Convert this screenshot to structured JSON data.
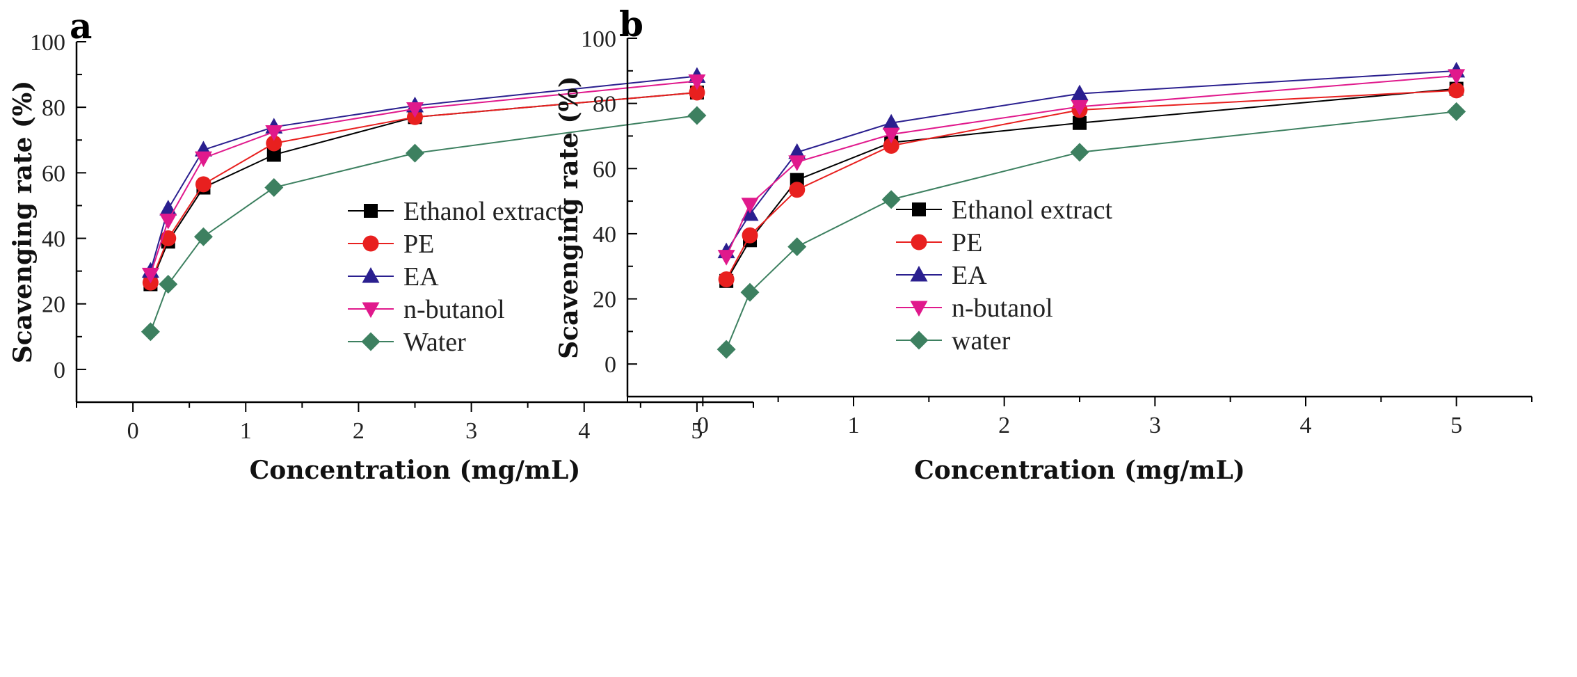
{
  "chart_data": [
    {
      "type": "line",
      "panel_label": "a",
      "xlabel": "Concentration (mg/mL)",
      "ylabel": "Scavenging rate (%)",
      "xlim": [
        -0.5,
        5.5
      ],
      "ylim": [
        -10,
        100
      ],
      "xticks": [
        0,
        1,
        2,
        3,
        4,
        5
      ],
      "yticks": [
        0,
        20,
        40,
        60,
        80,
        100
      ],
      "grid": false,
      "legend_position": "right",
      "series": [
        {
          "name": "Ethanol extract",
          "color": "#000000",
          "marker": "square",
          "x": [
            0.156,
            0.3125,
            0.625,
            1.25,
            2.5,
            5
          ],
          "y": [
            26.0,
            39.0,
            55.5,
            65.5,
            77.0,
            84.5
          ]
        },
        {
          "name": "PE",
          "color": "#e8201f",
          "marker": "circle",
          "x": [
            0.156,
            0.3125,
            0.625,
            1.25,
            2.5,
            5
          ],
          "y": [
            26.5,
            40.0,
            56.5,
            69.0,
            77.0,
            84.5
          ]
        },
        {
          "name": "EA",
          "color": "#2a1f8f",
          "marker": "triangle-up",
          "x": [
            0.156,
            0.3125,
            0.625,
            1.25,
            2.5,
            5
          ],
          "y": [
            30.0,
            49.0,
            67.0,
            74.0,
            80.5,
            89.5
          ]
        },
        {
          "name": "n-butanol",
          "color": "#e0198c",
          "marker": "triangle-down",
          "x": [
            0.156,
            0.3125,
            0.625,
            1.25,
            2.5,
            5
          ],
          "y": [
            29.0,
            45.5,
            64.5,
            72.5,
            79.5,
            88.0
          ]
        },
        {
          "name": "Water",
          "color": "#3d8060",
          "marker": "diamond",
          "x": [
            0.156,
            0.3125,
            0.625,
            1.25,
            2.5,
            5
          ],
          "y": [
            11.5,
            26.0,
            40.5,
            55.5,
            66.0,
            77.5
          ]
        }
      ]
    },
    {
      "type": "line",
      "panel_label": "b",
      "xlabel": "Concentration (mg/mL)",
      "ylabel": "Scavenging rate (%)",
      "xlim": [
        -0.5,
        5.5
      ],
      "ylim": [
        -10,
        100
      ],
      "xticks": [
        0,
        1,
        2,
        3,
        4,
        5
      ],
      "yticks": [
        0,
        20,
        40,
        60,
        80,
        100
      ],
      "grid": false,
      "legend_position": "right",
      "series": [
        {
          "name": "Ethanol extract",
          "color": "#000000",
          "marker": "square",
          "x": [
            0.156,
            0.3125,
            0.625,
            1.25,
            2.5,
            5
          ],
          "y": [
            25.5,
            38.0,
            56.5,
            68.0,
            74.0,
            84.5
          ]
        },
        {
          "name": "PE",
          "color": "#e8201f",
          "marker": "circle",
          "x": [
            0.156,
            0.3125,
            0.625,
            1.25,
            2.5,
            5
          ],
          "y": [
            26.0,
            39.5,
            53.5,
            67.0,
            78.0,
            84.0
          ]
        },
        {
          "name": "EA",
          "color": "#2a1f8f",
          "marker": "triangle-up",
          "x": [
            0.156,
            0.3125,
            0.625,
            1.25,
            2.5,
            5
          ],
          "y": [
            34.5,
            46.0,
            65.0,
            74.0,
            83.0,
            90.0
          ]
        },
        {
          "name": "n-butanol",
          "color": "#e0198c",
          "marker": "triangle-down",
          "x": [
            0.156,
            0.3125,
            0.625,
            1.25,
            2.5,
            5
          ],
          "y": [
            33.0,
            49.0,
            62.0,
            70.5,
            79.0,
            88.5
          ]
        },
        {
          "name": "water",
          "color": "#3d8060",
          "marker": "diamond",
          "x": [
            0.156,
            0.3125,
            0.625,
            1.25,
            2.5,
            5
          ],
          "y": [
            4.5,
            22.0,
            36.0,
            50.5,
            65.0,
            77.5
          ]
        }
      ]
    }
  ]
}
